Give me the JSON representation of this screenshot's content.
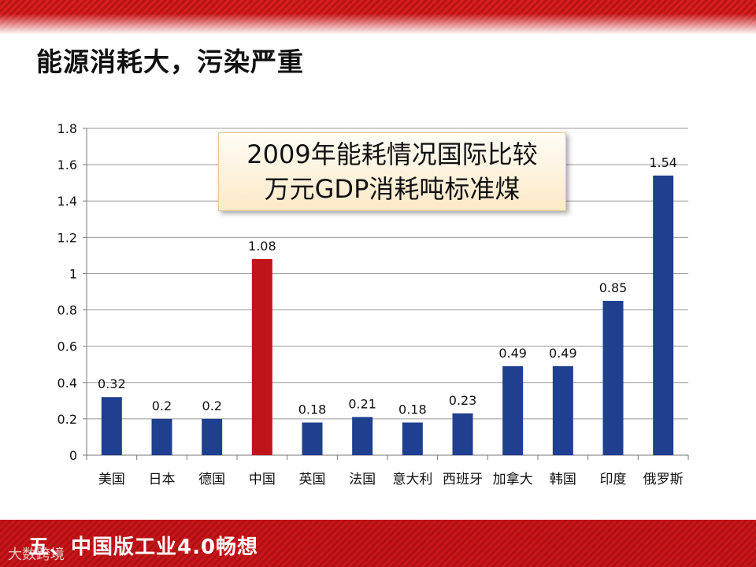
{
  "slide": {
    "title": "能源消耗大，污染严重",
    "callout_line1": "2009年能耗情况国际比较",
    "callout_line2": "万元GDP消耗吨标准煤",
    "footer": "五、中国版工业4.0畅想",
    "watermark": "大数跨境"
  },
  "colors": {
    "bar": "#1f3f8f",
    "highlight_bar": "#c0141a",
    "band": "#c8161a"
  },
  "chart_data": {
    "type": "bar",
    "categories": [
      "美国",
      "日本",
      "德国",
      "中国",
      "英国",
      "法国",
      "意大利",
      "西班牙",
      "加拿大",
      "韩国",
      "印度",
      "俄罗斯"
    ],
    "values": [
      0.32,
      0.2,
      0.2,
      1.08,
      0.18,
      0.21,
      0.18,
      0.23,
      0.49,
      0.49,
      0.85,
      1.54
    ],
    "data_labels": [
      "0.32",
      "0.2",
      "0.2",
      "1.08",
      "0.18",
      "0.21",
      "0.18",
      "0.23",
      "0.49",
      "0.49",
      "0.85",
      "1.54"
    ],
    "highlight_category": "中国",
    "ylim": [
      0,
      1.8
    ],
    "y_ticks": [
      0,
      0.2,
      0.4,
      0.6,
      0.8,
      1,
      1.2,
      1.4,
      1.6,
      1.8
    ],
    "y_tick_labels": [
      "0",
      "0.2",
      "0.4",
      "0.6",
      "0.8",
      "1",
      "1.2",
      "1.4",
      "1.6",
      "1.8"
    ],
    "grid": true,
    "title": "",
    "xlabel": "",
    "ylabel": ""
  }
}
